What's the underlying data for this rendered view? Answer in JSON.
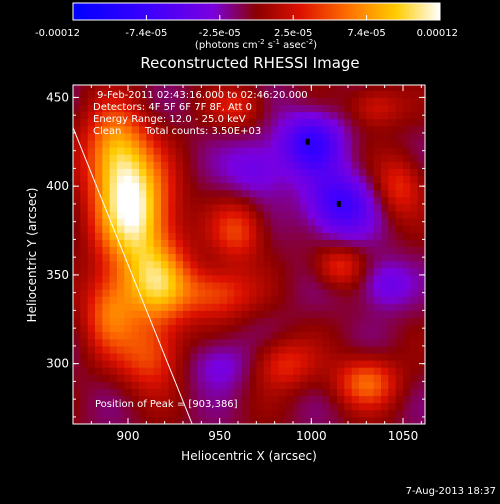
{
  "chart_data": {
    "type": "heatmap",
    "title": "Reconstructed RHESSI Image",
    "xlabel": "Heliocentric X (arcsec)",
    "ylabel": "Heliocentric Y (arcsec)",
    "xlim": [
      870,
      1062
    ],
    "ylim": [
      266,
      457
    ],
    "xticks": [
      900,
      950,
      1000,
      1050
    ],
    "yticks": [
      300,
      350,
      400,
      450
    ],
    "colorbar": {
      "range": [
        -0.00012,
        0.00012
      ],
      "tick_labels": [
        "-0.00012",
        "-7.4e-05",
        "-2.5e-05",
        "2.5e-05",
        "7.4e-05",
        "0.00012"
      ],
      "unit_label": "(photons cm",
      "unit_exp1": "-2",
      "unit_mid": " s",
      "unit_exp2": "-1",
      "unit_mid2": " asec",
      "unit_exp3": "-2",
      "unit_close": ")"
    },
    "annotations": [
      "9-Feb-2011 02:43:16.000 to 02:46:20.000",
      "Detectors: 4F 5F 6F 7F 8F, Att 0",
      "Energy Range: 12.0 - 25.0 keV",
      "Clean",
      "Total counts: 3.50E+03"
    ],
    "peak_label": "Position of Peak = [903,386]",
    "peak": [
      903,
      386
    ],
    "limb_line": [
      [
        870,
        433
      ],
      [
        935,
        266
      ]
    ],
    "minima_markers": [
      [
        998,
        425
      ],
      [
        1015,
        390
      ]
    ],
    "sources": [
      {
        "x": 903,
        "y": 386,
        "amp": 1.0,
        "sx": 14,
        "sy": 22
      },
      {
        "x": 893,
        "y": 420,
        "amp": 0.65,
        "sx": 12,
        "sy": 18
      },
      {
        "x": 916,
        "y": 345,
        "amp": 0.7,
        "sx": 13,
        "sy": 16
      },
      {
        "x": 890,
        "y": 330,
        "amp": 0.5,
        "sx": 10,
        "sy": 16
      },
      {
        "x": 912,
        "y": 305,
        "amp": 0.45,
        "sx": 12,
        "sy": 14
      },
      {
        "x": 948,
        "y": 340,
        "amp": 0.45,
        "sx": 14,
        "sy": 10
      },
      {
        "x": 960,
        "y": 375,
        "amp": 0.4,
        "sx": 10,
        "sy": 12
      },
      {
        "x": 985,
        "y": 300,
        "amp": 0.35,
        "sx": 12,
        "sy": 10
      },
      {
        "x": 1030,
        "y": 290,
        "amp": 0.5,
        "sx": 12,
        "sy": 10
      },
      {
        "x": 1015,
        "y": 355,
        "amp": 0.35,
        "sx": 9,
        "sy": 8
      },
      {
        "x": 1048,
        "y": 400,
        "amp": 0.35,
        "sx": 9,
        "sy": 12
      },
      {
        "x": 1035,
        "y": 445,
        "amp": 0.3,
        "sx": 10,
        "sy": 8
      },
      {
        "x": 960,
        "y": 445,
        "amp": 0.3,
        "sx": 10,
        "sy": 8
      },
      {
        "x": 1000,
        "y": 425,
        "amp": -0.55,
        "sx": 12,
        "sy": 12
      },
      {
        "x": 1015,
        "y": 390,
        "amp": -0.55,
        "sx": 13,
        "sy": 13
      },
      {
        "x": 970,
        "y": 410,
        "amp": -0.3,
        "sx": 12,
        "sy": 12
      },
      {
        "x": 1040,
        "y": 345,
        "amp": -0.3,
        "sx": 10,
        "sy": 10
      },
      {
        "x": 950,
        "y": 300,
        "amp": -0.25,
        "sx": 12,
        "sy": 10
      }
    ]
  },
  "footer": {
    "timestamp": "7-Aug-2013 18:37"
  }
}
